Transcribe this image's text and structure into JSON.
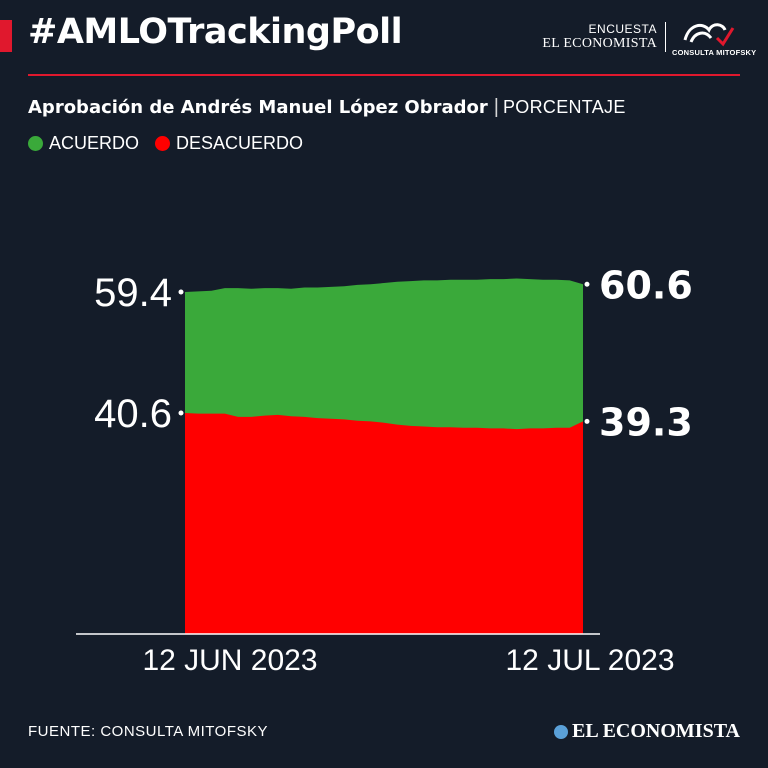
{
  "header": {
    "hashtag": "#AMLOTrackingPoll",
    "brand_line1": "ENCUESTA",
    "brand_line2": "EL ECONOMISTA",
    "logo_text": "CONSULTA MITOFSKY",
    "logo_icon": "mitofsky-logo-icon"
  },
  "subtitle": {
    "main": "Aprobación de Andrés Manuel López Obrador",
    "separator": "|",
    "unit": "PORCENTAJE"
  },
  "legend": [
    {
      "label": "ACUERDO",
      "color": "#3aa93a"
    },
    {
      "label": "DESACUERDO",
      "color": "#ff0000"
    }
  ],
  "chart_data": {
    "type": "area",
    "stacked": true,
    "title": "Aprobación de Andrés Manuel López Obrador",
    "unit": "PORCENTAJE",
    "x_start": "12 JUN 2023",
    "x_end": "12 JUL 2023",
    "x_tick_labels": [
      "12 JUN 2023",
      "12 JUL 2023"
    ],
    "series": [
      {
        "name": "ACUERDO",
        "color": "#3aa93a",
        "values": [
          59.4,
          59.5,
          59.6,
          60.0,
          60.0,
          59.9,
          60.0,
          60.0,
          59.9,
          60.1,
          60.1,
          60.2,
          60.3,
          60.5,
          60.6,
          60.8,
          61.0,
          61.1,
          61.2,
          61.2,
          61.3,
          61.3,
          61.3,
          61.4,
          61.4,
          61.5,
          61.4,
          61.3,
          61.3,
          61.2,
          60.6
        ]
      },
      {
        "name": "DESACUERDO",
        "color": "#ff0000",
        "values": [
          40.6,
          40.5,
          40.5,
          40.5,
          40.0,
          40.0,
          40.2,
          40.3,
          40.1,
          40.0,
          39.8,
          39.7,
          39.6,
          39.4,
          39.3,
          39.1,
          38.8,
          38.6,
          38.5,
          38.4,
          38.4,
          38.3,
          38.3,
          38.2,
          38.2,
          38.1,
          38.2,
          38.2,
          38.3,
          38.3,
          39.3
        ]
      }
    ],
    "start_labels": [
      "59.4",
      "40.6"
    ],
    "end_labels": [
      "60.6",
      "39.3"
    ],
    "colors": {
      "axis": "#ffffff",
      "background": "#141c29"
    }
  },
  "footer": {
    "source": "FUENTE: CONSULTA MITOFSKY",
    "brand": "EL ECONOMISTA",
    "brand_icon": "el-economista-icon"
  }
}
